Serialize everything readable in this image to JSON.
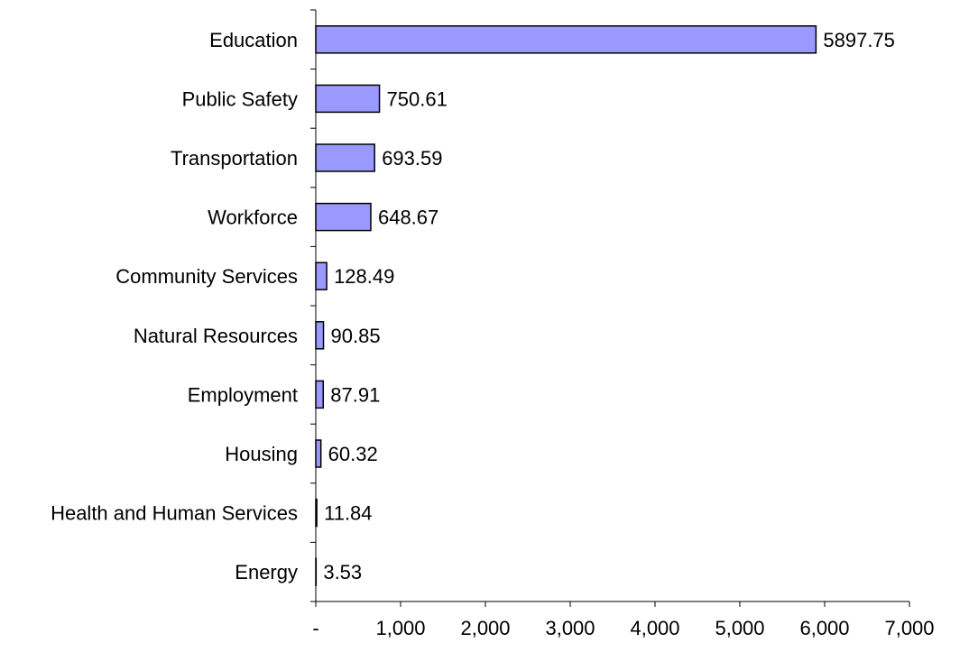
{
  "chart_data": {
    "type": "bar",
    "orientation": "horizontal",
    "title": "",
    "xlabel": "",
    "ylabel": "",
    "categories": [
      "Education",
      "Public Safety",
      "Transportation",
      "Workforce",
      "Community Services",
      "Natural Resources",
      "Employment",
      "Housing",
      "Health and Human Services",
      "Energy"
    ],
    "values": [
      5897.75,
      750.61,
      693.59,
      648.67,
      128.49,
      90.85,
      87.91,
      60.32,
      11.84,
      3.53
    ],
    "value_labels": [
      "5897.75",
      "750.61",
      "693.59",
      "648.67",
      "128.49",
      "90.85",
      "87.91",
      "60.32",
      "11.84",
      "3.53"
    ],
    "xlim": [
      0,
      7000
    ],
    "x_ticks": [
      0,
      1000,
      2000,
      3000,
      4000,
      5000,
      6000,
      7000
    ],
    "x_tick_labels": [
      "-",
      "1,000",
      "2,000",
      "3,000",
      "4,000",
      "5,000",
      "6,000",
      "7,000"
    ],
    "grid": false,
    "legend": "none",
    "colors": {
      "bar_fill": "#9999ff",
      "bar_stroke": "#000000",
      "axis": "#000000"
    }
  }
}
